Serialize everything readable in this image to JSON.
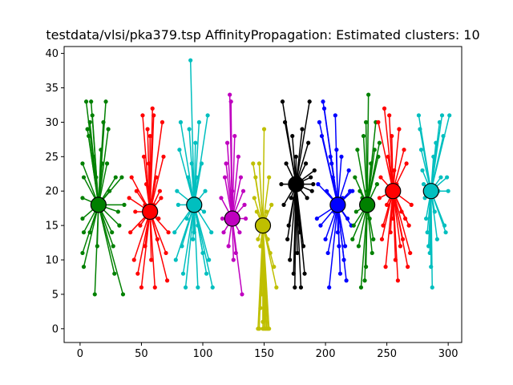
{
  "chart_data": {
    "type": "scatter",
    "title": "testdata/vlsi/pka379.tsp AffinityPropagation: Estimated clusters: 10",
    "xlabel": "",
    "ylabel": "",
    "xlim": [
      -13,
      311
    ],
    "ylim": [
      -2,
      41
    ],
    "xticks": [
      0,
      50,
      100,
      150,
      200,
      250,
      300
    ],
    "yticks": [
      0,
      5,
      10,
      15,
      20,
      25,
      30,
      35,
      40
    ],
    "grid": false,
    "legend": "none",
    "clusters": [
      {
        "color": "#008000",
        "center": [
          15,
          18
        ],
        "points": [
          [
            2,
            24
          ],
          [
            3,
            22
          ],
          [
            2,
            19
          ],
          [
            2,
            16
          ],
          [
            3,
            14
          ],
          [
            2,
            11
          ],
          [
            3,
            9
          ],
          [
            5,
            33
          ],
          [
            6,
            29
          ],
          [
            7,
            28
          ],
          [
            8,
            30
          ],
          [
            9,
            33
          ],
          [
            10,
            31
          ],
          [
            11,
            25
          ],
          [
            12,
            5
          ],
          [
            13,
            22
          ],
          [
            17,
            26
          ],
          [
            18,
            24
          ],
          [
            19,
            30
          ],
          [
            21,
            33
          ],
          [
            22,
            24
          ],
          [
            23,
            29
          ],
          [
            24,
            20
          ],
          [
            26,
            14
          ],
          [
            27,
            12
          ],
          [
            28,
            8
          ],
          [
            29,
            22
          ],
          [
            31,
            17
          ],
          [
            32,
            15
          ],
          [
            34,
            22
          ],
          [
            35,
            5
          ],
          [
            36,
            18
          ],
          [
            14,
            12
          ],
          [
            8,
            14
          ]
        ]
      },
      {
        "color": "#ff0000",
        "center": [
          57,
          17
        ],
        "points": [
          [
            40,
            19
          ],
          [
            41,
            14
          ],
          [
            42,
            22
          ],
          [
            44,
            10
          ],
          [
            45,
            17
          ],
          [
            46,
            20
          ],
          [
            47,
            8
          ],
          [
            49,
            15
          ],
          [
            50,
            6
          ],
          [
            51,
            31
          ],
          [
            52,
            25
          ],
          [
            53,
            12
          ],
          [
            54,
            21
          ],
          [
            55,
            29
          ],
          [
            56,
            24
          ],
          [
            57,
            28
          ],
          [
            58,
            10
          ],
          [
            59,
            32
          ],
          [
            60,
            31
          ],
          [
            61,
            6
          ],
          [
            62,
            22
          ],
          [
            63,
            13
          ],
          [
            64,
            16
          ],
          [
            65,
            20
          ],
          [
            66,
            19
          ],
          [
            67,
            30
          ],
          [
            68,
            25
          ],
          [
            70,
            11
          ],
          [
            71,
            7
          ],
          [
            72,
            14
          ],
          [
            53,
            18
          ],
          [
            60,
            18
          ]
        ]
      },
      {
        "color": "#00bfbf",
        "center": [
          93,
          18
        ],
        "points": [
          [
            77,
            14
          ],
          [
            78,
            10
          ],
          [
            79,
            20
          ],
          [
            80,
            18
          ],
          [
            81,
            26
          ],
          [
            82,
            30
          ],
          [
            83,
            12
          ],
          [
            84,
            8
          ],
          [
            86,
            6
          ],
          [
            87,
            16
          ],
          [
            88,
            22
          ],
          [
            89,
            29
          ],
          [
            90,
            39
          ],
          [
            91,
            24
          ],
          [
            92,
            13
          ],
          [
            93,
            14
          ],
          [
            94,
            27
          ],
          [
            95,
            22
          ],
          [
            96,
            6
          ],
          [
            97,
            30
          ],
          [
            99,
            24
          ],
          [
            100,
            11
          ],
          [
            101,
            17
          ],
          [
            102,
            20
          ],
          [
            103,
            8
          ],
          [
            104,
            31
          ],
          [
            105,
            10
          ],
          [
            107,
            14
          ],
          [
            108,
            6
          ],
          [
            96,
            15
          ]
        ]
      },
      {
        "color": "#bf00bf",
        "center": [
          124,
          16
        ],
        "points": [
          [
            115,
            19
          ],
          [
            116,
            16
          ],
          [
            117,
            14
          ],
          [
            118,
            22
          ],
          [
            119,
            24
          ],
          [
            120,
            27
          ],
          [
            121,
            12
          ],
          [
            122,
            34
          ],
          [
            123,
            33
          ],
          [
            124,
            20
          ],
          [
            125,
            10
          ],
          [
            126,
            28
          ],
          [
            127,
            11
          ],
          [
            128,
            16
          ],
          [
            129,
            25
          ],
          [
            130,
            14
          ],
          [
            131,
            22
          ],
          [
            132,
            5
          ],
          [
            133,
            20
          ],
          [
            134,
            18
          ],
          [
            135,
            16
          ],
          [
            121,
            16
          ]
        ]
      },
      {
        "color": "#bfbf00",
        "center": [
          149,
          15
        ],
        "points": [
          [
            141,
            24
          ],
          [
            142,
            19
          ],
          [
            143,
            22
          ],
          [
            144,
            17
          ],
          [
            145,
            13
          ],
          [
            146,
            24
          ],
          [
            147,
            12
          ],
          [
            148,
            7
          ],
          [
            149,
            0
          ],
          [
            150,
            0
          ],
          [
            151,
            0
          ],
          [
            152,
            0
          ],
          [
            153,
            0
          ],
          [
            150,
            29
          ],
          [
            152,
            17
          ],
          [
            153,
            13
          ],
          [
            154,
            22
          ],
          [
            155,
            11
          ],
          [
            156,
            18
          ],
          [
            158,
            9
          ],
          [
            160,
            6
          ],
          [
            148,
            5
          ],
          [
            147,
            3
          ],
          [
            151,
            2
          ],
          [
            149,
            1
          ],
          [
            154,
            0
          ],
          [
            146,
            0
          ],
          [
            145,
            0
          ]
        ]
      },
      {
        "color": "#000000",
        "center": [
          176,
          21
        ],
        "points": [
          [
            164,
            21
          ],
          [
            165,
            33
          ],
          [
            166,
            18
          ],
          [
            167,
            30
          ],
          [
            168,
            24
          ],
          [
            169,
            13
          ],
          [
            170,
            15
          ],
          [
            171,
            10
          ],
          [
            172,
            19
          ],
          [
            173,
            28
          ],
          [
            174,
            8
          ],
          [
            175,
            6
          ],
          [
            176,
            25
          ],
          [
            177,
            11
          ],
          [
            178,
            16
          ],
          [
            179,
            14
          ],
          [
            180,
            6
          ],
          [
            181,
            29
          ],
          [
            182,
            12
          ],
          [
            183,
            8
          ],
          [
            184,
            24
          ],
          [
            185,
            19
          ],
          [
            186,
            27
          ],
          [
            187,
            33
          ],
          [
            188,
            22
          ],
          [
            189,
            20
          ],
          [
            190,
            21
          ],
          [
            191,
            23
          ]
        ]
      },
      {
        "color": "#0000ff",
        "center": [
          210,
          18
        ],
        "points": [
          [
            193,
            16
          ],
          [
            194,
            21
          ],
          [
            195,
            30
          ],
          [
            196,
            15
          ],
          [
            197,
            28
          ],
          [
            198,
            33
          ],
          [
            199,
            32
          ],
          [
            200,
            13
          ],
          [
            201,
            20
          ],
          [
            202,
            11
          ],
          [
            203,
            6
          ],
          [
            204,
            25
          ],
          [
            205,
            24
          ],
          [
            206,
            22
          ],
          [
            207,
            17
          ],
          [
            208,
            31
          ],
          [
            209,
            26
          ],
          [
            210,
            14
          ],
          [
            211,
            12
          ],
          [
            212,
            8
          ],
          [
            213,
            25
          ],
          [
            214,
            19
          ],
          [
            215,
            10
          ],
          [
            216,
            12
          ],
          [
            217,
            7
          ],
          [
            218,
            16
          ],
          [
            219,
            23
          ],
          [
            220,
            20
          ],
          [
            221,
            15
          ],
          [
            222,
            20
          ]
        ]
      },
      {
        "color": "#008000",
        "center": [
          234,
          18
        ],
        "points": [
          [
            222,
            13
          ],
          [
            223,
            15
          ],
          [
            224,
            22
          ],
          [
            225,
            17
          ],
          [
            226,
            26
          ],
          [
            227,
            12
          ],
          [
            228,
            20
          ],
          [
            229,
            6
          ],
          [
            230,
            19
          ],
          [
            231,
            28
          ],
          [
            232,
            7
          ],
          [
            233,
            9
          ],
          [
            234,
            20
          ],
          [
            235,
            34
          ],
          [
            236,
            16
          ],
          [
            237,
            24
          ],
          [
            238,
            11
          ],
          [
            239,
            13
          ],
          [
            240,
            26
          ],
          [
            241,
            30
          ],
          [
            242,
            21
          ],
          [
            243,
            25
          ],
          [
            244,
            27
          ],
          [
            233,
            30
          ]
        ]
      },
      {
        "color": "#ff0000",
        "center": [
          255,
          20
        ],
        "points": [
          [
            243,
            30
          ],
          [
            244,
            19
          ],
          [
            245,
            22
          ],
          [
            246,
            13
          ],
          [
            247,
            15
          ],
          [
            248,
            32
          ],
          [
            249,
            9
          ],
          [
            250,
            18
          ],
          [
            251,
            25
          ],
          [
            252,
            31
          ],
          [
            253,
            14
          ],
          [
            254,
            28
          ],
          [
            255,
            16
          ],
          [
            256,
            23
          ],
          [
            257,
            10
          ],
          [
            258,
            21
          ],
          [
            259,
            7
          ],
          [
            260,
            29
          ],
          [
            261,
            12
          ],
          [
            262,
            17
          ],
          [
            263,
            13
          ],
          [
            264,
            26
          ],
          [
            265,
            16
          ],
          [
            266,
            24
          ],
          [
            267,
            9
          ],
          [
            268,
            15
          ],
          [
            269,
            11
          ],
          [
            270,
            18
          ]
        ]
      },
      {
        "color": "#00bfbf",
        "center": [
          286,
          20
        ],
        "points": [
          [
            276,
            31
          ],
          [
            277,
            29
          ],
          [
            278,
            26
          ],
          [
            279,
            23
          ],
          [
            280,
            21
          ],
          [
            281,
            19
          ],
          [
            282,
            16
          ],
          [
            283,
            14
          ],
          [
            284,
            12
          ],
          [
            285,
            11
          ],
          [
            286,
            9
          ],
          [
            287,
            6
          ],
          [
            288,
            25
          ],
          [
            289,
            17
          ],
          [
            290,
            27
          ],
          [
            291,
            13
          ],
          [
            292,
            20
          ],
          [
            293,
            30
          ],
          [
            294,
            22
          ],
          [
            295,
            31
          ],
          [
            296,
            28
          ],
          [
            297,
            15
          ],
          [
            298,
            14
          ],
          [
            299,
            22
          ],
          [
            300,
            20
          ],
          [
            301,
            31
          ]
        ]
      }
    ]
  }
}
